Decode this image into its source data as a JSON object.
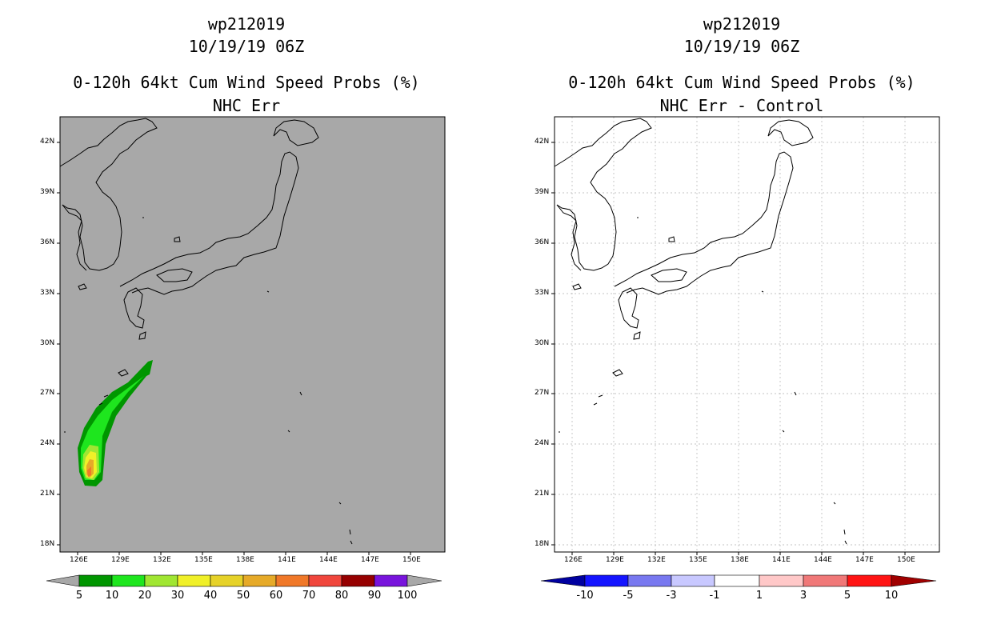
{
  "left_panel": {
    "title_storm": "wp212019",
    "title_time": "10/19/19 06Z",
    "title_product": "0-120h 64kt Cum Wind Speed Probs (%)",
    "title_run": "NHC Err",
    "background_color": "#a8a8a8",
    "lat_labels": [
      "42N",
      "39N",
      "36N",
      "33N",
      "30N",
      "27N",
      "24N",
      "21N",
      "18N"
    ],
    "lon_labels": [
      "126E",
      "129E",
      "132E",
      "135E",
      "138E",
      "141E",
      "144E",
      "147E",
      "150E"
    ],
    "colorbar_colors": [
      "#009600",
      "#1ee61e",
      "#a0e632",
      "#f0f028",
      "#e6d228",
      "#e6aa28",
      "#f07828",
      "#f0463c",
      "#960000",
      "#7814dc"
    ],
    "colorbar_labels": [
      "5",
      "10",
      "20",
      "30",
      "40",
      "50",
      "60",
      "70",
      "80",
      "90",
      "100"
    ],
    "gridlines": false
  },
  "right_panel": {
    "title_storm": "wp212019",
    "title_time": "10/19/19 06Z",
    "title_product": "0-120h 64kt Cum Wind Speed Probs (%)",
    "title_run": "NHC Err - Control",
    "background_color": "#ffffff",
    "lat_labels": [
      "42N",
      "39N",
      "36N",
      "33N",
      "30N",
      "27N",
      "24N",
      "21N",
      "18N"
    ],
    "lon_labels": [
      "126E",
      "129E",
      "132E",
      "135E",
      "138E",
      "141E",
      "144E",
      "147E",
      "150E"
    ],
    "colorbar_colors": [
      "#0000a0",
      "#1414ff",
      "#7878f0",
      "#c8c8ff",
      "#ffffff",
      "#ffc8c8",
      "#f07878",
      "#ff1414",
      "#a00000"
    ],
    "colorbar_labels": [
      "-10",
      "-5",
      "-3",
      "-1",
      "1",
      "3",
      "5",
      "10"
    ],
    "gridlines": true
  }
}
